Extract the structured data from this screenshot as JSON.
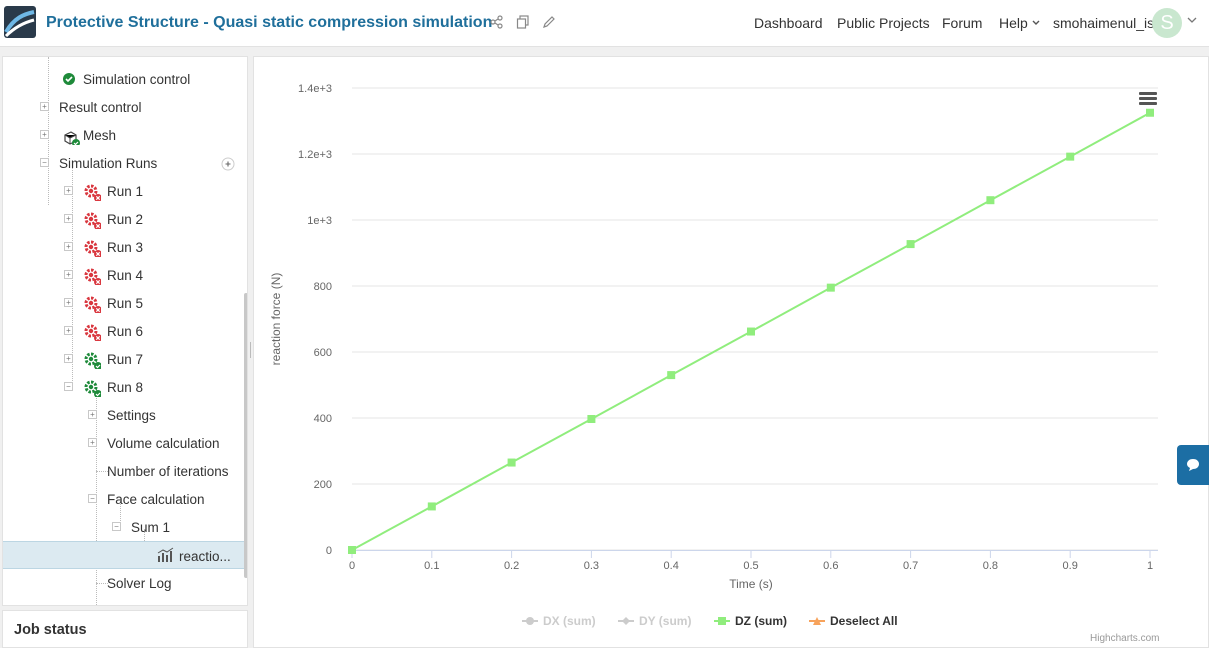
{
  "header": {
    "title": "Protective Structure - Quasi static compression simulation",
    "nav": [
      "Dashboard",
      "Public Projects",
      "Forum",
      "Help"
    ],
    "username": "smohaimenul_is",
    "avatar_letter": "S",
    "icons": [
      "share-icon",
      "copy-icon",
      "edit-icon",
      "chevron-down-icon"
    ]
  },
  "tree": {
    "simulation_control": "Simulation control",
    "result_control": "Result control",
    "mesh": "Mesh",
    "simulation_runs": "Simulation Runs",
    "runs": [
      "Run 1",
      "Run 2",
      "Run 3",
      "Run 4",
      "Run 5",
      "Run 6",
      "Run 7",
      "Run 8"
    ],
    "run_status": [
      "failed",
      "failed",
      "failed",
      "failed",
      "failed",
      "failed",
      "success",
      "success"
    ],
    "run8_children": {
      "settings": "Settings",
      "volume_calculation": "Volume calculation",
      "number_of_iterations": "Number of iterations",
      "face_calculation": "Face calculation",
      "sum1": "Sum 1",
      "reaction": "reactio...",
      "solver_log": "Solver Log"
    }
  },
  "job_status": {
    "label": "Job status"
  },
  "colors": {
    "accent": "#1f6f9b",
    "success": "#1e8a3a",
    "error": "#d9363e",
    "series_dz": "#90ed7d",
    "chat": "#1c6ea4"
  },
  "chart_data": {
    "type": "line",
    "xlabel": "Time (s)",
    "ylabel": "reaction force (N)",
    "xlim": [
      0,
      1
    ],
    "ylim": [
      0,
      1400
    ],
    "x_ticks": [
      "0",
      "0.1",
      "0.2",
      "0.3",
      "0.4",
      "0.5",
      "0.6",
      "0.7",
      "0.8",
      "0.9",
      "1"
    ],
    "y_ticks": [
      "0",
      "200",
      "400",
      "600",
      "800",
      "1e+3",
      "1.2e+3",
      "1.4e+3"
    ],
    "x_tick_values": [
      0,
      0.1,
      0.2,
      0.3,
      0.4,
      0.5,
      0.6,
      0.7,
      0.8,
      0.9,
      1
    ],
    "y_tick_values": [
      0,
      200,
      400,
      600,
      800,
      1000,
      1200,
      1400
    ],
    "grid": "horizontal",
    "legend_position": "bottom",
    "series": [
      {
        "name": "DX (sum)",
        "visible": false,
        "color": "#cccccc",
        "marker": "circle",
        "x": [],
        "y": []
      },
      {
        "name": "DY (sum)",
        "visible": false,
        "color": "#cccccc",
        "marker": "diamond",
        "x": [],
        "y": []
      },
      {
        "name": "DZ (sum)",
        "visible": true,
        "color": "#90ed7d",
        "marker": "square",
        "x": [
          0,
          0.1,
          0.2,
          0.3,
          0.4,
          0.5,
          0.6,
          0.7,
          0.8,
          0.9,
          1
        ],
        "y": [
          0,
          132,
          265,
          397,
          530,
          662,
          795,
          927,
          1060,
          1192,
          1325
        ]
      }
    ],
    "legend_extra": {
      "label": "Deselect All",
      "color": "#f7a35c",
      "marker": "triangle"
    },
    "credits": "Highcharts.com"
  }
}
